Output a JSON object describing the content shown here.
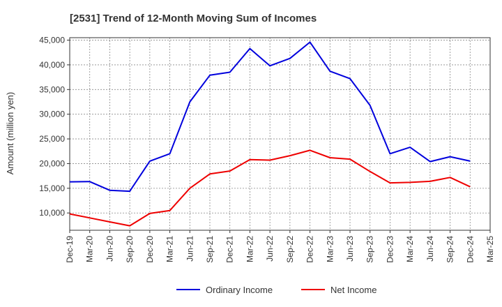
{
  "chart_data": {
    "type": "line",
    "title": "[2531]  Trend of 12-Month Moving Sum of Incomes",
    "xlabel": "",
    "ylabel": "Amount (million yen)",
    "ylim": [
      6500,
      45500
    ],
    "yticks": [
      10000,
      15000,
      20000,
      25000,
      30000,
      35000,
      40000,
      45000
    ],
    "ytick_labels": [
      "10,000",
      "15,000",
      "20,000",
      "25,000",
      "30,000",
      "35,000",
      "40,000",
      "45,000"
    ],
    "x": [
      "Dec-19",
      "Mar-20",
      "Jun-20",
      "Sep-20",
      "Dec-20",
      "Mar-21",
      "Jun-21",
      "Sep-21",
      "Dec-21",
      "Mar-22",
      "Jun-22",
      "Sep-22",
      "Dec-22",
      "Mar-23",
      "Jun-23",
      "Sep-23",
      "Dec-23",
      "Mar-24",
      "Jun-24",
      "Sep-24",
      "Dec-24",
      "Mar-25"
    ],
    "series": [
      {
        "name": "Ordinary Income",
        "color": "#0000dd",
        "values": [
          16300,
          16350,
          14600,
          14400,
          20500,
          22000,
          32500,
          37900,
          38500,
          43300,
          39800,
          41300,
          44600,
          38700,
          37200,
          31800,
          22000,
          23300,
          20400,
          21400,
          20500,
          null
        ]
      },
      {
        "name": "Net Income",
        "color": "#ee0000",
        "values": [
          9800,
          9000,
          8200,
          7400,
          9900,
          10500,
          15000,
          17900,
          18500,
          20800,
          20700,
          21600,
          22700,
          21200,
          20900,
          18400,
          16100,
          16200,
          16400,
          17200,
          15300,
          null
        ]
      }
    ],
    "legend": "bottom-center",
    "grid": true
  }
}
